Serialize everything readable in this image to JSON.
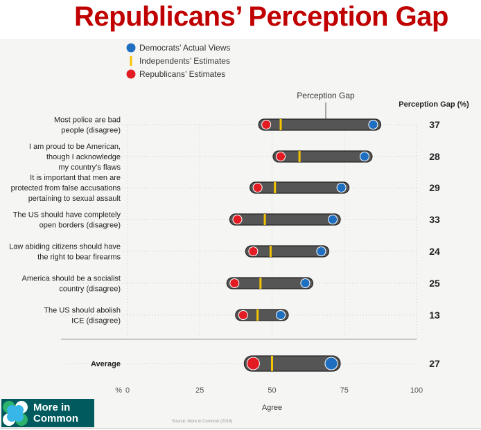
{
  "title": "Republicans’ Perception Gap",
  "logo": {
    "line1": "More in",
    "line2": "Common"
  },
  "chart_data": {
    "type": "dumbbell",
    "legend": [
      {
        "name": "Democrats’ Actual Views",
        "color": "#1e6fc0"
      },
      {
        "name": "Independents’ Estimates",
        "color": "#f5c400"
      },
      {
        "name": "Republicans’ Estimates",
        "color": "#e31b23"
      }
    ],
    "legend_position": "top-left",
    "annotation": "Perception Gap",
    "gap_header": "Perception Gap (%)",
    "xlabel": "Agree",
    "x_unit": "%",
    "xlim": [
      0,
      100
    ],
    "xticks": [
      "0",
      "25",
      "50",
      "75",
      "100"
    ],
    "source": "Source: More in Common (2019)",
    "rows": [
      {
        "label": [
          "Most police are bad",
          "people (disagree)"
        ],
        "republicans": 48,
        "independents": 53,
        "democrats": 85,
        "gap": "37"
      },
      {
        "label": [
          "I am proud to be American,",
          "though I acknowledge",
          "my country’s flaws"
        ],
        "republicans": 53,
        "independents": 59.5,
        "democrats": 82,
        "gap": "28"
      },
      {
        "label": [
          "It is important that men are",
          "protected from false accusations",
          "pertaining to sexual assault"
        ],
        "republicans": 45,
        "independents": 51,
        "democrats": 74,
        "gap": "29"
      },
      {
        "label": [
          "The US should have completely",
          "open borders (disagree)"
        ],
        "republicans": 38,
        "independents": 47.5,
        "democrats": 71,
        "gap": "33"
      },
      {
        "label": [
          "Law abiding citizens should have",
          "the right to bear firearms"
        ],
        "republicans": 43.5,
        "independents": 49.5,
        "democrats": 67,
        "gap": "24"
      },
      {
        "label": [
          "America should be a socialist",
          "country (disagree)"
        ],
        "republicans": 37,
        "independents": 46,
        "democrats": 61.5,
        "gap": "25"
      },
      {
        "label": [
          "The US should abolish",
          "ICE (disagree)"
        ],
        "republicans": 40,
        "independents": 45,
        "democrats": 53,
        "gap": "13"
      }
    ],
    "average": {
      "label": [
        "Average"
      ],
      "republicans": 43.5,
      "independents": 50,
      "democrats": 70.5,
      "gap": "27"
    }
  }
}
